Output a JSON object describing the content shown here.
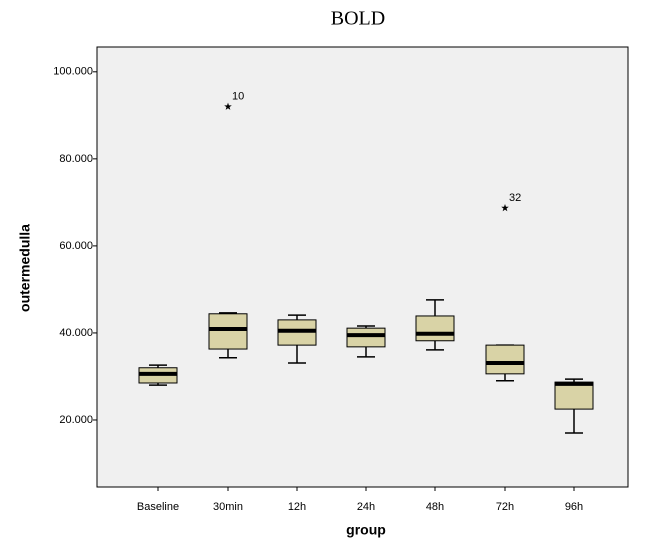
{
  "chart_data": {
    "type": "box",
    "title": "BOLD",
    "x_label": "group",
    "y_label": "outermedulla",
    "categories": [
      "Baseline",
      "30min",
      "12h",
      "24h",
      "48h",
      "72h",
      "96h"
    ],
    "min": [
      28.0,
      34.3,
      33.1,
      34.5,
      36.1,
      29.0,
      17.0
    ],
    "q1": [
      28.5,
      36.3,
      37.2,
      36.8,
      38.2,
      30.6,
      22.5
    ],
    "median": [
      30.6,
      40.9,
      40.5,
      39.5,
      39.8,
      33.1,
      28.3
    ],
    "q3": [
      32.0,
      44.4,
      43.0,
      41.1,
      43.9,
      37.2,
      28.7
    ],
    "max": [
      32.6,
      44.6,
      44.1,
      41.6,
      47.6,
      37.2,
      29.4
    ],
    "outliers": [
      {
        "category": "30min",
        "value": 92.0,
        "label": "10"
      },
      {
        "category": "72h",
        "value": 68.7,
        "label": "32"
      }
    ],
    "color": "#d9d3a6",
    "ylim": [
      4.6,
      105.7
    ],
    "yticks": [
      {
        "value": 20,
        "label": "20.000"
      },
      {
        "value": 40,
        "label": "40.000"
      },
      {
        "value": 60,
        "label": "60.000"
      },
      {
        "value": 80,
        "label": "80.000"
      },
      {
        "value": 100,
        "label": "100.000"
      }
    ]
  }
}
